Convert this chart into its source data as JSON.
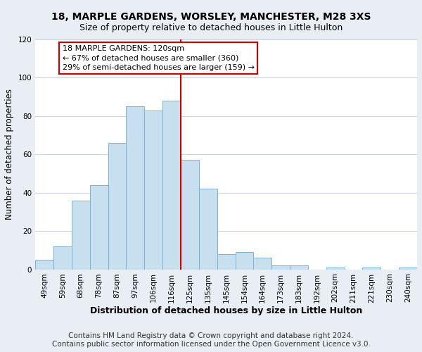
{
  "title": "18, MARPLE GARDENS, WORSLEY, MANCHESTER, M28 3XS",
  "subtitle": "Size of property relative to detached houses in Little Hulton",
  "xlabel": "Distribution of detached houses by size in Little Hulton",
  "ylabel": "Number of detached properties",
  "bar_labels": [
    "49sqm",
    "59sqm",
    "68sqm",
    "78sqm",
    "87sqm",
    "97sqm",
    "106sqm",
    "116sqm",
    "125sqm",
    "135sqm",
    "145sqm",
    "154sqm",
    "164sqm",
    "173sqm",
    "183sqm",
    "192sqm",
    "202sqm",
    "211sqm",
    "221sqm",
    "230sqm",
    "240sqm"
  ],
  "bar_values": [
    5,
    12,
    36,
    44,
    66,
    85,
    83,
    88,
    57,
    42,
    8,
    9,
    6,
    2,
    2,
    0,
    1,
    0,
    1,
    0,
    1
  ],
  "bar_color": "#c8dff0",
  "bar_edge_color": "#7ab3d4",
  "vline_color": "#cc0000",
  "vline_index": 7.5,
  "annotation_text": "18 MARPLE GARDENS: 120sqm\n← 67% of detached houses are smaller (360)\n29% of semi-detached houses are larger (159) →",
  "annotation_box_edge": "#cc0000",
  "annotation_box_face": "#ffffff",
  "ylim": [
    0,
    120
  ],
  "yticks": [
    0,
    20,
    40,
    60,
    80,
    100,
    120
  ],
  "footer_line1": "Contains HM Land Registry data © Crown copyright and database right 2024.",
  "footer_line2": "Contains public sector information licensed under the Open Government Licence v3.0.",
  "bg_color": "#e8eef4",
  "plot_bg_color": "#ffffff",
  "grid_color": "#c8d4e0",
  "title_fontsize": 10,
  "subtitle_fontsize": 9,
  "xlabel_fontsize": 9,
  "ylabel_fontsize": 8.5,
  "tick_fontsize": 7.5,
  "footer_fontsize": 7.5,
  "annot_fontsize": 8
}
